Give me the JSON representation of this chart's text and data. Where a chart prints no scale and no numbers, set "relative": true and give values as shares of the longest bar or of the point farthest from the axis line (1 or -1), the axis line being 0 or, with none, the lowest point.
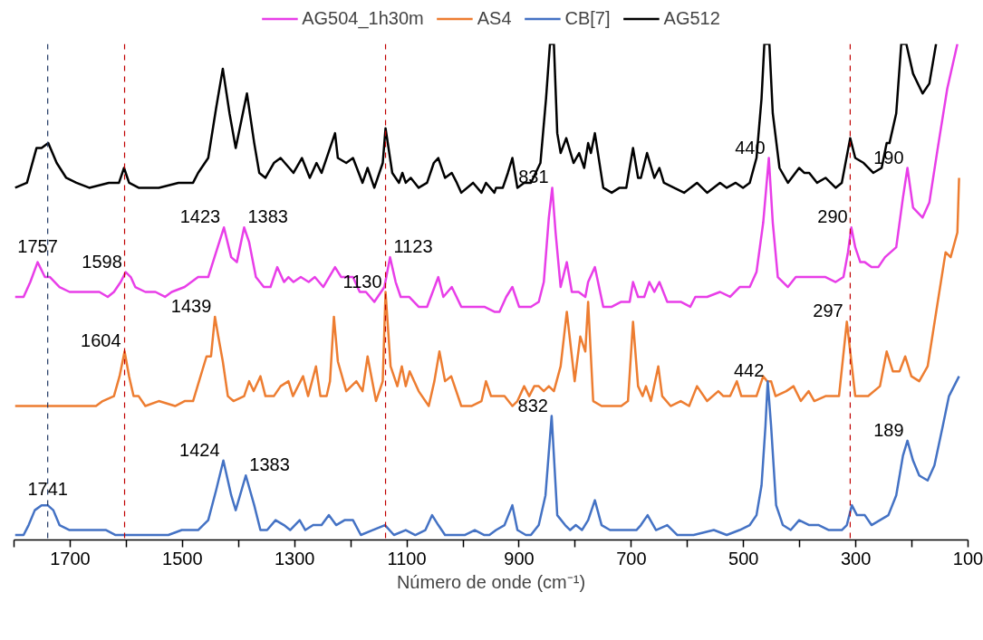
{
  "chart_data": {
    "type": "line",
    "relative": true,
    "xlabel": "Número de onde (cm⁻¹)",
    "legend": "top",
    "grid": false,
    "marker": "none",
    "line_style": "solid",
    "xlim": [
      1800,
      100
    ],
    "xticks": [
      {
        "value": 1800,
        "label": null
      },
      1700,
      {
        "value": 1600,
        "label": null
      },
      1500,
      {
        "value": 1400,
        "label": null
      },
      1300,
      {
        "value": 1200,
        "label": null
      },
      1100,
      {
        "value": 1000,
        "label": null
      },
      900,
      {
        "value": 800,
        "label": null
      },
      700,
      {
        "value": 600,
        "label": null
      },
      500,
      {
        "value": 400,
        "label": null
      },
      300,
      {
        "value": 200,
        "label": null
      },
      100
    ],
    "series": [
      {
        "name": "AG504_1h30m",
        "color": "#e83ee8",
        "x": [
          1798,
          1783,
          1771,
          1758,
          1745,
          1736,
          1719,
          1701,
          1683,
          1660,
          1648,
          1633,
          1622,
          1610,
          1601,
          1592,
          1584,
          1566,
          1548,
          1531,
          1519,
          1496,
          1472,
          1454,
          1440,
          1426,
          1413,
          1403,
          1390,
          1381,
          1369,
          1355,
          1343,
          1331,
          1319,
          1311,
          1302,
          1289,
          1275,
          1264,
          1249,
          1228,
          1217,
          1196,
          1184,
          1173,
          1158,
          1140,
          1130,
          1120,
          1111,
          1096,
          1079,
          1064,
          1044,
          1035,
          1020,
          1003,
          985,
          962,
          944,
          935,
          923,
          912,
          900,
          891,
          879,
          865,
          856,
          847,
          841,
          835,
          826,
          815,
          806,
          794,
          782,
          777,
          765,
          750,
          735,
          718,
          703,
          697,
          688,
          677,
          668,
          659,
          650,
          636,
          612,
          595,
          586,
          565,
          542,
          524,
          507,
          489,
          477,
          465,
          455,
          448,
          439,
          421,
          407,
          389,
          372,
          354,
          336,
          322,
          314,
          308,
          301,
          292,
          284,
          272,
          260,
          248,
          228,
          216,
          208,
          198,
          181,
          169,
          154,
          137,
          119
        ],
        "values": [
          0.49,
          0.49,
          0.52,
          0.56,
          0.53,
          0.53,
          0.51,
          0.5,
          0.5,
          0.5,
          0.5,
          0.49,
          0.5,
          0.52,
          0.54,
          0.53,
          0.51,
          0.5,
          0.5,
          0.49,
          0.5,
          0.51,
          0.53,
          0.53,
          0.58,
          0.63,
          0.57,
          0.56,
          0.63,
          0.6,
          0.53,
          0.51,
          0.51,
          0.55,
          0.52,
          0.53,
          0.52,
          0.53,
          0.52,
          0.53,
          0.51,
          0.55,
          0.53,
          0.53,
          0.5,
          0.5,
          0.48,
          0.51,
          0.57,
          0.52,
          0.49,
          0.49,
          0.47,
          0.47,
          0.53,
          0.49,
          0.51,
          0.47,
          0.47,
          0.47,
          0.46,
          0.46,
          0.49,
          0.51,
          0.47,
          0.47,
          0.47,
          0.48,
          0.52,
          0.65,
          0.71,
          0.62,
          0.51,
          0.56,
          0.5,
          0.5,
          0.49,
          0.52,
          0.55,
          0.47,
          0.47,
          0.48,
          0.48,
          0.52,
          0.49,
          0.49,
          0.52,
          0.5,
          0.52,
          0.48,
          0.48,
          0.47,
          0.49,
          0.49,
          0.5,
          0.49,
          0.51,
          0.51,
          0.54,
          0.64,
          0.77,
          0.64,
          0.53,
          0.51,
          0.53,
          0.53,
          0.53,
          0.53,
          0.52,
          0.53,
          0.58,
          0.63,
          0.59,
          0.56,
          0.56,
          0.55,
          0.55,
          0.57,
          0.59,
          0.69,
          0.75,
          0.67,
          0.65,
          0.68,
          0.79,
          0.91,
          1.0
        ]
      },
      {
        "name": "AS4",
        "color": "#ed7d31",
        "x": [
          1798,
          1766,
          1736,
          1707,
          1677,
          1654,
          1642,
          1622,
          1612,
          1603,
          1595,
          1587,
          1578,
          1566,
          1542,
          1513,
          1496,
          1481,
          1473,
          1457,
          1449,
          1442,
          1436,
          1428,
          1419,
          1409,
          1390,
          1381,
          1373,
          1361,
          1352,
          1337,
          1325,
          1311,
          1303,
          1285,
          1276,
          1262,
          1254,
          1243,
          1237,
          1230,
          1223,
          1208,
          1190,
          1179,
          1170,
          1155,
          1143,
          1138,
          1129,
          1117,
          1109,
          1102,
          1095,
          1079,
          1061,
          1051,
          1042,
          1032,
          1021,
          1003,
          985,
          967,
          959,
          950,
          944,
          941,
          926,
          912,
          903,
          891,
          882,
          873,
          865,
          856,
          847,
          838,
          826,
          815,
          801,
          791,
          782,
          777,
          768,
          753,
          735,
          718,
          706,
          697,
          688,
          680,
          674,
          665,
          652,
          645,
          630,
          612,
          597,
          583,
          565,
          545,
          536,
          524,
          512,
          504,
          489,
          477,
          465,
          458,
          451,
          443,
          424,
          411,
          398,
          384,
          374,
          354,
          330,
          316,
          308,
          301,
          278,
          257,
          245,
          234,
          222,
          212,
          201,
          187,
          172,
          154,
          140,
          131,
          119,
          116
        ],
        "values": [
          0.27,
          0.27,
          0.27,
          0.27,
          0.27,
          0.27,
          0.28,
          0.29,
          0.33,
          0.38,
          0.33,
          0.29,
          0.29,
          0.27,
          0.28,
          0.27,
          0.28,
          0.28,
          0.31,
          0.37,
          0.37,
          0.45,
          0.41,
          0.36,
          0.29,
          0.28,
          0.29,
          0.32,
          0.3,
          0.33,
          0.29,
          0.29,
          0.31,
          0.32,
          0.29,
          0.33,
          0.29,
          0.35,
          0.29,
          0.29,
          0.32,
          0.45,
          0.36,
          0.3,
          0.32,
          0.3,
          0.37,
          0.28,
          0.32,
          0.5,
          0.35,
          0.31,
          0.35,
          0.31,
          0.34,
          0.3,
          0.27,
          0.32,
          0.38,
          0.32,
          0.33,
          0.27,
          0.27,
          0.28,
          0.32,
          0.29,
          0.29,
          0.29,
          0.29,
          0.27,
          0.28,
          0.31,
          0.29,
          0.31,
          0.31,
          0.3,
          0.31,
          0.3,
          0.35,
          0.46,
          0.32,
          0.41,
          0.38,
          0.48,
          0.28,
          0.27,
          0.27,
          0.27,
          0.28,
          0.44,
          0.31,
          0.29,
          0.31,
          0.28,
          0.35,
          0.29,
          0.27,
          0.28,
          0.27,
          0.31,
          0.28,
          0.3,
          0.29,
          0.29,
          0.32,
          0.29,
          0.29,
          0.29,
          0.33,
          0.32,
          0.32,
          0.29,
          0.3,
          0.31,
          0.28,
          0.3,
          0.28,
          0.29,
          0.29,
          0.44,
          0.36,
          0.29,
          0.29,
          0.31,
          0.38,
          0.34,
          0.34,
          0.37,
          0.33,
          0.32,
          0.35,
          0.48,
          0.58,
          0.57,
          0.62,
          0.73
        ]
      },
      {
        "name": "CB[7]",
        "color": "#4472c4",
        "x": [
          1798,
          1783,
          1774,
          1763,
          1751,
          1740,
          1730,
          1719,
          1701,
          1683,
          1660,
          1636,
          1619,
          1602,
          1589,
          1572,
          1548,
          1525,
          1501,
          1472,
          1454,
          1440,
          1427,
          1413,
          1405,
          1387,
          1372,
          1361,
          1349,
          1334,
          1319,
          1308,
          1291,
          1281,
          1267,
          1252,
          1239,
          1226,
          1211,
          1196,
          1182,
          1161,
          1139,
          1123,
          1102,
          1085,
          1067,
          1055,
          1044,
          1032,
          1014,
          997,
          979,
          962,
          953,
          941,
          926,
          912,
          903,
          888,
          879,
          865,
          853,
          842,
          832,
          818,
          809,
          799,
          788,
          777,
          765,
          753,
          738,
          724,
          706,
          691,
          683,
          671,
          656,
          636,
          618,
          589,
          553,
          530,
          507,
          489,
          477,
          468,
          461,
          457,
          451,
          442,
          430,
          416,
          401,
          383,
          366,
          348,
          325,
          316,
          307,
          298,
          284,
          272,
          257,
          242,
          228,
          216,
          208,
          198,
          187,
          172,
          160,
          145,
          134,
          116
        ],
        "values": [
          0.01,
          0.01,
          0.03,
          0.06,
          0.07,
          0.07,
          0.06,
          0.03,
          0.02,
          0.02,
          0.02,
          0.02,
          0.01,
          0.01,
          0.01,
          0.01,
          0.01,
          0.01,
          0.02,
          0.02,
          0.04,
          0.1,
          0.16,
          0.09,
          0.06,
          0.13,
          0.07,
          0.02,
          0.02,
          0.04,
          0.03,
          0.02,
          0.04,
          0.02,
          0.03,
          0.03,
          0.05,
          0.03,
          0.04,
          0.04,
          0.01,
          0.02,
          0.03,
          0.01,
          0.02,
          0.01,
          0.02,
          0.05,
          0.03,
          0.01,
          0.01,
          0.01,
          0.02,
          0.01,
          0.01,
          0.02,
          0.03,
          0.07,
          0.02,
          0.01,
          0.01,
          0.03,
          0.09,
          0.25,
          0.05,
          0.03,
          0.02,
          0.03,
          0.02,
          0.04,
          0.08,
          0.03,
          0.02,
          0.02,
          0.02,
          0.02,
          0.03,
          0.05,
          0.02,
          0.03,
          0.01,
          0.01,
          0.02,
          0.01,
          0.02,
          0.03,
          0.05,
          0.11,
          0.23,
          0.32,
          0.23,
          0.07,
          0.03,
          0.02,
          0.04,
          0.03,
          0.03,
          0.02,
          0.02,
          0.03,
          0.07,
          0.05,
          0.05,
          0.03,
          0.04,
          0.05,
          0.09,
          0.17,
          0.2,
          0.16,
          0.13,
          0.12,
          0.15,
          0.23,
          0.29,
          0.33
        ]
      },
      {
        "name": "AG512",
        "color": "#000000",
        "x": [
          1798,
          1777,
          1760,
          1751,
          1739,
          1724,
          1707,
          1689,
          1666,
          1631,
          1613,
          1604,
          1595,
          1578,
          1542,
          1507,
          1481,
          1472,
          1454,
          1440,
          1428,
          1416,
          1405,
          1385,
          1372,
          1363,
          1352,
          1337,
          1325,
          1302,
          1287,
          1273,
          1261,
          1252,
          1240,
          1228,
          1223,
          1208,
          1196,
          1179,
          1170,
          1158,
          1143,
          1138,
          1126,
          1114,
          1108,
          1102,
          1093,
          1079,
          1064,
          1052,
          1044,
          1032,
          1020,
          1011,
          1003,
          982,
          967,
          959,
          944,
          941,
          929,
          920,
          912,
          903,
          891,
          879,
          862,
          852,
          845,
          838,
          832,
          826,
          816,
          803,
          793,
          784,
          777,
          772,
          765,
          750,
          735,
          721,
          709,
          697,
          688,
          683,
          672,
          659,
          650,
          642,
          624,
          606,
          583,
          565,
          542,
          530,
          514,
          501,
          489,
          477,
          468,
          463,
          454,
          448,
          436,
          421,
          401,
          392,
          383,
          369,
          354,
          336,
          325,
          310,
          301,
          286,
          269,
          254,
          245,
          240,
          228,
          219,
          210,
          198,
          181,
          169,
          157
        ],
        "values": [
          0.71,
          0.72,
          0.79,
          0.79,
          0.8,
          0.76,
          0.73,
          0.72,
          0.71,
          0.72,
          0.72,
          0.75,
          0.72,
          0.71,
          0.71,
          0.72,
          0.72,
          0.74,
          0.77,
          0.87,
          0.95,
          0.86,
          0.79,
          0.9,
          0.8,
          0.74,
          0.73,
          0.76,
          0.77,
          0.74,
          0.77,
          0.73,
          0.76,
          0.74,
          0.78,
          0.82,
          0.77,
          0.76,
          0.77,
          0.72,
          0.75,
          0.71,
          0.76,
          0.83,
          0.74,
          0.72,
          0.74,
          0.72,
          0.73,
          0.71,
          0.72,
          0.76,
          0.77,
          0.73,
          0.74,
          0.72,
          0.7,
          0.72,
          0.7,
          0.72,
          0.7,
          0.71,
          0.71,
          0.74,
          0.77,
          0.71,
          0.72,
          0.72,
          0.76,
          0.89,
          1.0,
          1.0,
          0.82,
          0.78,
          0.81,
          0.76,
          0.78,
          0.75,
          0.8,
          0.78,
          0.82,
          0.71,
          0.7,
          0.71,
          0.71,
          0.79,
          0.73,
          0.73,
          0.78,
          0.73,
          0.75,
          0.72,
          0.71,
          0.7,
          0.72,
          0.7,
          0.72,
          0.71,
          0.72,
          0.71,
          0.72,
          0.77,
          0.89,
          1.0,
          1.0,
          0.86,
          0.75,
          0.72,
          0.75,
          0.74,
          0.74,
          0.72,
          0.73,
          0.71,
          0.72,
          0.81,
          0.77,
          0.76,
          0.74,
          0.75,
          0.8,
          0.8,
          0.86,
          1.0,
          1.0,
          0.94,
          0.9,
          0.92,
          1.0
        ]
      }
    ],
    "ref_lines": [
      {
        "axis": "x",
        "value": 1740,
        "color": "#1f3864",
        "line_style": "dashed"
      },
      {
        "axis": "x",
        "value": 1603,
        "color": "#c00000",
        "line_style": "dashed"
      },
      {
        "axis": "x",
        "value": 1138,
        "color": "#c00000",
        "line_style": "dashed"
      },
      {
        "axis": "x",
        "value": 310,
        "color": "#c00000",
        "line_style": "dashed"
      }
    ],
    "annotations": [
      {
        "text": "1757",
        "x": 1758,
        "y": 0.56
      },
      {
        "text": "1598",
        "x": 1601,
        "y": 0.54
      },
      {
        "text": "1423",
        "x": 1426,
        "y": 0.63
      },
      {
        "text": "1383",
        "x": 1390,
        "y": 0.63
      },
      {
        "text": "1123",
        "x": 1130,
        "y": 0.57
      },
      {
        "text": "831",
        "x": 841,
        "y": 0.71
      },
      {
        "text": "440",
        "x": 455,
        "y": 0.77
      },
      {
        "text": "290",
        "x": 308,
        "y": 0.63
      },
      {
        "text": "190",
        "x": 208,
        "y": 0.75
      },
      {
        "text": "1604",
        "x": 1603,
        "y": 0.38
      },
      {
        "text": "1439",
        "x": 1442,
        "y": 0.45
      },
      {
        "text": "1130",
        "x": 1138,
        "y": 0.5
      },
      {
        "text": "297",
        "x": 316,
        "y": 0.44
      },
      {
        "text": "1741",
        "x": 1740,
        "y": 0.07
      },
      {
        "text": "1424",
        "x": 1427,
        "y": 0.16
      },
      {
        "text": "1383",
        "x": 1387,
        "y": 0.13
      },
      {
        "text": "832",
        "x": 842,
        "y": 0.25
      },
      {
        "text": "442",
        "x": 457,
        "y": 0.32
      },
      {
        "text": "189",
        "x": 208,
        "y": 0.2
      }
    ]
  }
}
